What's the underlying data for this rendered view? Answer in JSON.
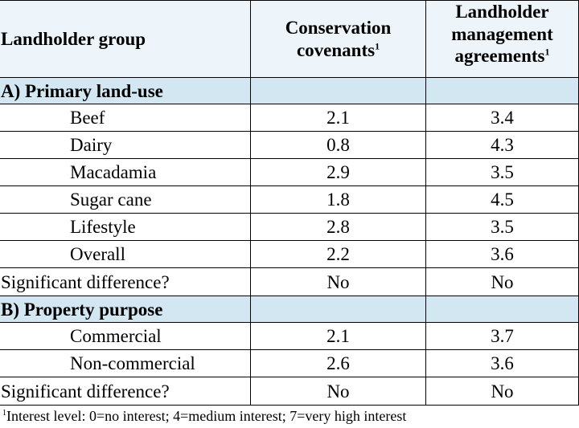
{
  "header": {
    "col1": "Landholder group",
    "col2_line1": "Conservation",
    "col2_line2": "covenants",
    "col3_line1": "Landholder",
    "col3_line2": "management",
    "col3_line3": "agreements",
    "footnote_marker": "1"
  },
  "section_a": {
    "title": "A)  Primary land-use",
    "rows": [
      {
        "label": "Beef",
        "cc": "2.1",
        "lma": "3.4"
      },
      {
        "label": "Dairy",
        "cc": "0.8",
        "lma": "4.3"
      },
      {
        "label": "Macadamia",
        "cc": "2.9",
        "lma": "3.5"
      },
      {
        "label": "Sugar cane",
        "cc": "1.8",
        "lma": "4.5"
      },
      {
        "label": "Lifestyle",
        "cc": "2.8",
        "lma": "3.5"
      },
      {
        "label": "Overall",
        "cc": "2.2",
        "lma": "3.6"
      }
    ],
    "significance": {
      "label": "Significant difference?",
      "cc": "No",
      "lma": "No"
    }
  },
  "section_b": {
    "title": "B)  Property purpose",
    "rows": [
      {
        "label": "Commercial",
        "cc": "2.1",
        "lma": "3.7"
      },
      {
        "label": "Non-commercial",
        "cc": "2.6",
        "lma": "3.6"
      }
    ],
    "significance": {
      "label": "Significant difference?",
      "cc": "No",
      "lma": "No"
    }
  },
  "footnote": {
    "marker": "1",
    "text": "Interest level: 0=no interest; 4=medium interest; 7=very high interest"
  }
}
